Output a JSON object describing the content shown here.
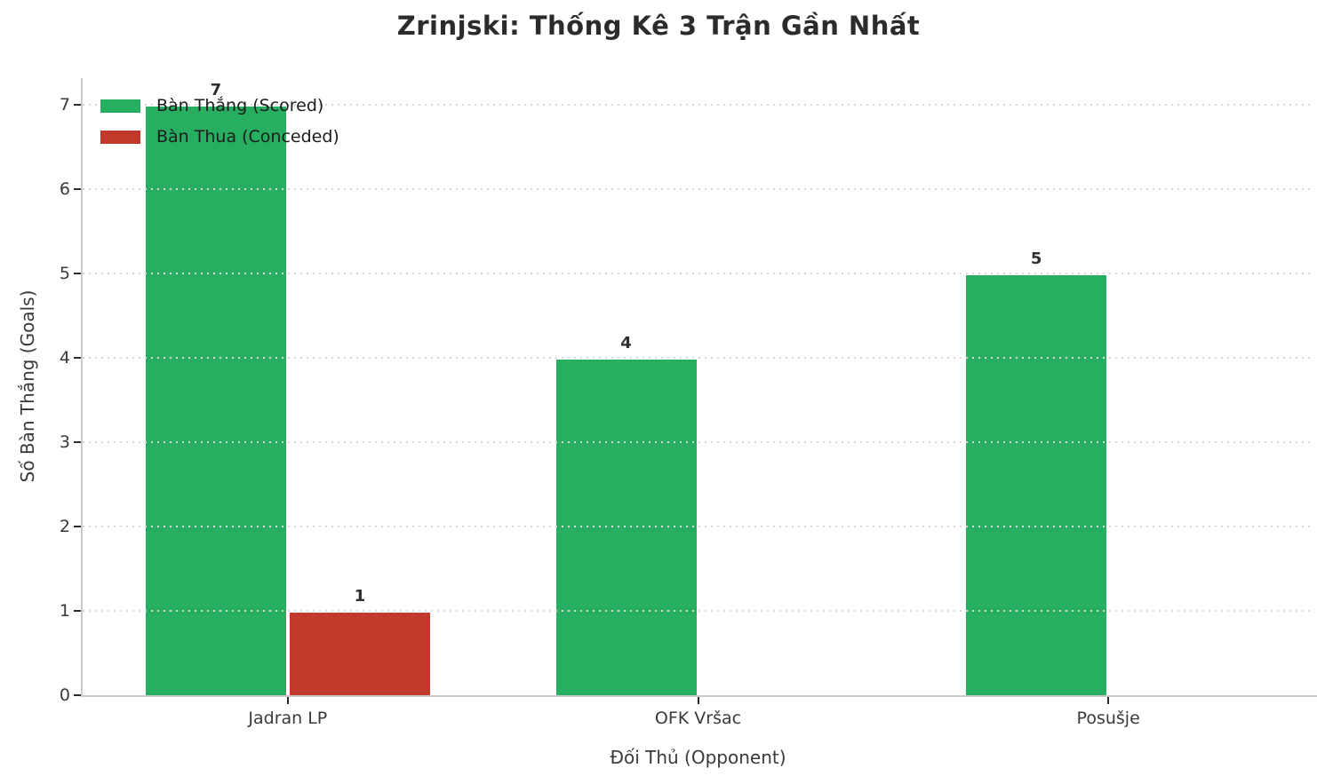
{
  "chart_data": {
    "type": "bar",
    "title": "Zrinjski: Thống Kê 3 Trận Gần Nhất",
    "xlabel": "Đối Thủ (Opponent)",
    "ylabel": "Số Bàn Thắng (Goals)",
    "categories": [
      "Jadran LP",
      "OFK Vršac",
      "Posušje"
    ],
    "series": [
      {
        "name": "Bàn Thắng (Scored)",
        "color": "#27ae60",
        "values": [
          7,
          4,
          5
        ]
      },
      {
        "name": "Bàn Thua (Conceded)",
        "color": "#c0392b",
        "values": [
          1,
          0,
          0
        ]
      }
    ],
    "yticks": [
      0,
      1,
      2,
      3,
      4,
      5,
      6,
      7
    ],
    "ylim": [
      0,
      7.32
    ],
    "grid": "horizontal-dotted",
    "grid_drawn_over_bars": true,
    "legend_position": "upper-left",
    "bar_value_labels_shown": true,
    "colors": {
      "grid": "#d9d9d9",
      "spine": "#c9c9c9",
      "tick_mark": "#2b2b2b",
      "axis_text": "#3a3a3a",
      "title_text": "#2b2b2b",
      "background": "#ffffff"
    }
  }
}
